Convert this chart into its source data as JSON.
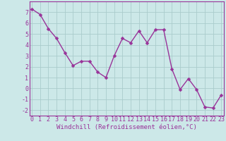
{
  "x": [
    0,
    1,
    2,
    3,
    4,
    5,
    6,
    7,
    8,
    9,
    10,
    11,
    12,
    13,
    14,
    15,
    16,
    17,
    18,
    19,
    20,
    21,
    22,
    23
  ],
  "y": [
    7.3,
    6.8,
    5.5,
    4.6,
    3.3,
    2.1,
    2.5,
    2.5,
    1.5,
    1.0,
    3.0,
    4.6,
    4.2,
    5.3,
    4.2,
    5.4,
    5.4,
    1.8,
    -0.1,
    0.9,
    -0.1,
    -1.7,
    -1.8,
    -0.6
  ],
  "line_color": "#993399",
  "marker": "D",
  "marker_size": 2.5,
  "line_width": 1.0,
  "bg_color": "#cce8e8",
  "grid_color": "#aacccc",
  "xlabel": "Windchill (Refroidissement éolien,°C)",
  "xlabel_color": "#993399",
  "xlabel_fontsize": 6.5,
  "tick_color": "#993399",
  "tick_fontsize": 6.0,
  "ylim": [
    -2.5,
    8.0
  ],
  "yticks": [
    -2,
    -1,
    0,
    1,
    2,
    3,
    4,
    5,
    6,
    7
  ],
  "xticks": [
    0,
    1,
    2,
    3,
    4,
    5,
    6,
    7,
    8,
    9,
    10,
    11,
    12,
    13,
    14,
    15,
    16,
    17,
    18,
    19,
    20,
    21,
    22,
    23
  ],
  "xlim": [
    -0.3,
    23.3
  ]
}
